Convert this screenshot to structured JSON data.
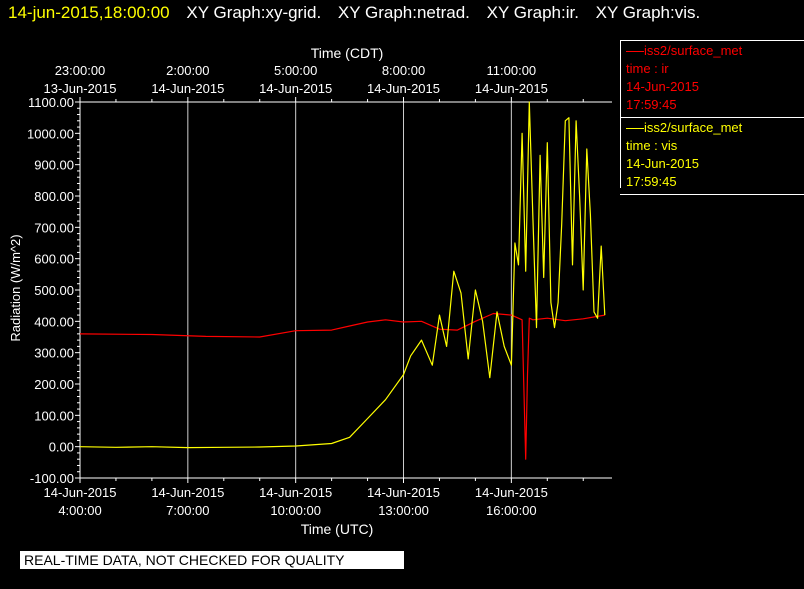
{
  "header": {
    "timestamp": "14-jun-2015,18:00:00",
    "graphs": [
      "XY Graph:xy-grid.",
      "XY Graph:netrad.",
      "XY Graph:ir.",
      "XY Graph:vis."
    ]
  },
  "legend": [
    {
      "station": "iss2/surface_met",
      "var": "time : ir",
      "date": "14-Jun-2015",
      "time": "17:59:45",
      "color": "#ff0000"
    },
    {
      "station": "iss2/surface_met",
      "var": "time : vis",
      "date": "14-Jun-2015",
      "time": "17:59:45",
      "color": "#ffff00"
    }
  ],
  "note": "REAL-TIME DATA, NOT CHECKED FOR QUALITY",
  "chart_data": {
    "type": "line",
    "ylabel": "Radiation  (W/m^2)",
    "xlabel_bottom": "Time (UTC)",
    "xlabel_top": "Time (CDT)",
    "ylim": [
      -100,
      1100
    ],
    "xlim_hours": [
      4,
      18.8
    ],
    "grid": "vertical",
    "yticks": [
      "-100.00",
      "0.00",
      "100.00",
      "200.00",
      "300.00",
      "400.00",
      "500.00",
      "600.00",
      "700.00",
      "800.00",
      "900.00",
      "1000.00",
      "1100.00"
    ],
    "xticks_bottom": [
      {
        "h": 4,
        "date": "14-Jun-2015",
        "time": "4:00:00"
      },
      {
        "h": 7,
        "date": "14-Jun-2015",
        "time": "7:00:00"
      },
      {
        "h": 10,
        "date": "14-Jun-2015",
        "time": "10:00:00"
      },
      {
        "h": 13,
        "date": "14-Jun-2015",
        "time": "13:00:00"
      },
      {
        "h": 16,
        "date": "14-Jun-2015",
        "time": "16:00:00"
      }
    ],
    "xticks_top": [
      {
        "h": 4,
        "time": "23:00:00",
        "date": "13-Jun-2015"
      },
      {
        "h": 7,
        "time": "2:00:00",
        "date": "14-Jun-2015"
      },
      {
        "h": 10,
        "time": "5:00:00",
        "date": "14-Jun-2015"
      },
      {
        "h": 13,
        "time": "8:00:00",
        "date": "14-Jun-2015"
      },
      {
        "h": 16,
        "time": "11:00:00",
        "date": "14-Jun-2015"
      }
    ],
    "series": [
      {
        "var": "ir",
        "color": "#ff0000",
        "x": [
          4.0,
          6.0,
          7.5,
          9.0,
          10.0,
          11.0,
          11.5,
          12.0,
          12.5,
          13.0,
          13.5,
          14.0,
          14.5,
          15.0,
          15.5,
          16.0,
          16.3,
          16.4,
          16.45,
          16.5,
          16.6,
          17.0,
          17.5,
          18.0,
          18.6
        ],
        "y": [
          360,
          358,
          352,
          350,
          370,
          372,
          385,
          398,
          405,
          398,
          400,
          375,
          372,
          400,
          425,
          420,
          405,
          -40,
          230,
          410,
          405,
          410,
          402,
          408,
          420
        ]
      },
      {
        "var": "vis",
        "color": "#ffff00",
        "x": [
          4.0,
          5.0,
          6.0,
          7.0,
          8.0,
          9.0,
          10.0,
          11.0,
          11.5,
          12.0,
          12.5,
          13.0,
          13.2,
          13.5,
          13.8,
          14.0,
          14.2,
          14.4,
          14.6,
          14.8,
          15.0,
          15.2,
          15.4,
          15.6,
          15.8,
          16.0,
          16.1,
          16.2,
          16.3,
          16.4,
          16.5,
          16.6,
          16.7,
          16.8,
          16.9,
          17.0,
          17.1,
          17.2,
          17.3,
          17.4,
          17.5,
          17.6,
          17.7,
          17.8,
          17.9,
          18.0,
          18.1,
          18.2,
          18.3,
          18.4,
          18.5,
          18.6
        ],
        "y": [
          0,
          -2,
          0,
          -3,
          -2,
          -1,
          2,
          10,
          30,
          90,
          150,
          230,
          290,
          340,
          260,
          420,
          320,
          560,
          490,
          280,
          500,
          400,
          220,
          430,
          320,
          260,
          650,
          580,
          1000,
          560,
          1100,
          730,
          380,
          930,
          540,
          970,
          460,
          380,
          460,
          710,
          1040,
          1050,
          580,
          1040,
          800,
          500,
          950,
          740,
          430,
          410,
          640,
          420
        ]
      }
    ]
  }
}
